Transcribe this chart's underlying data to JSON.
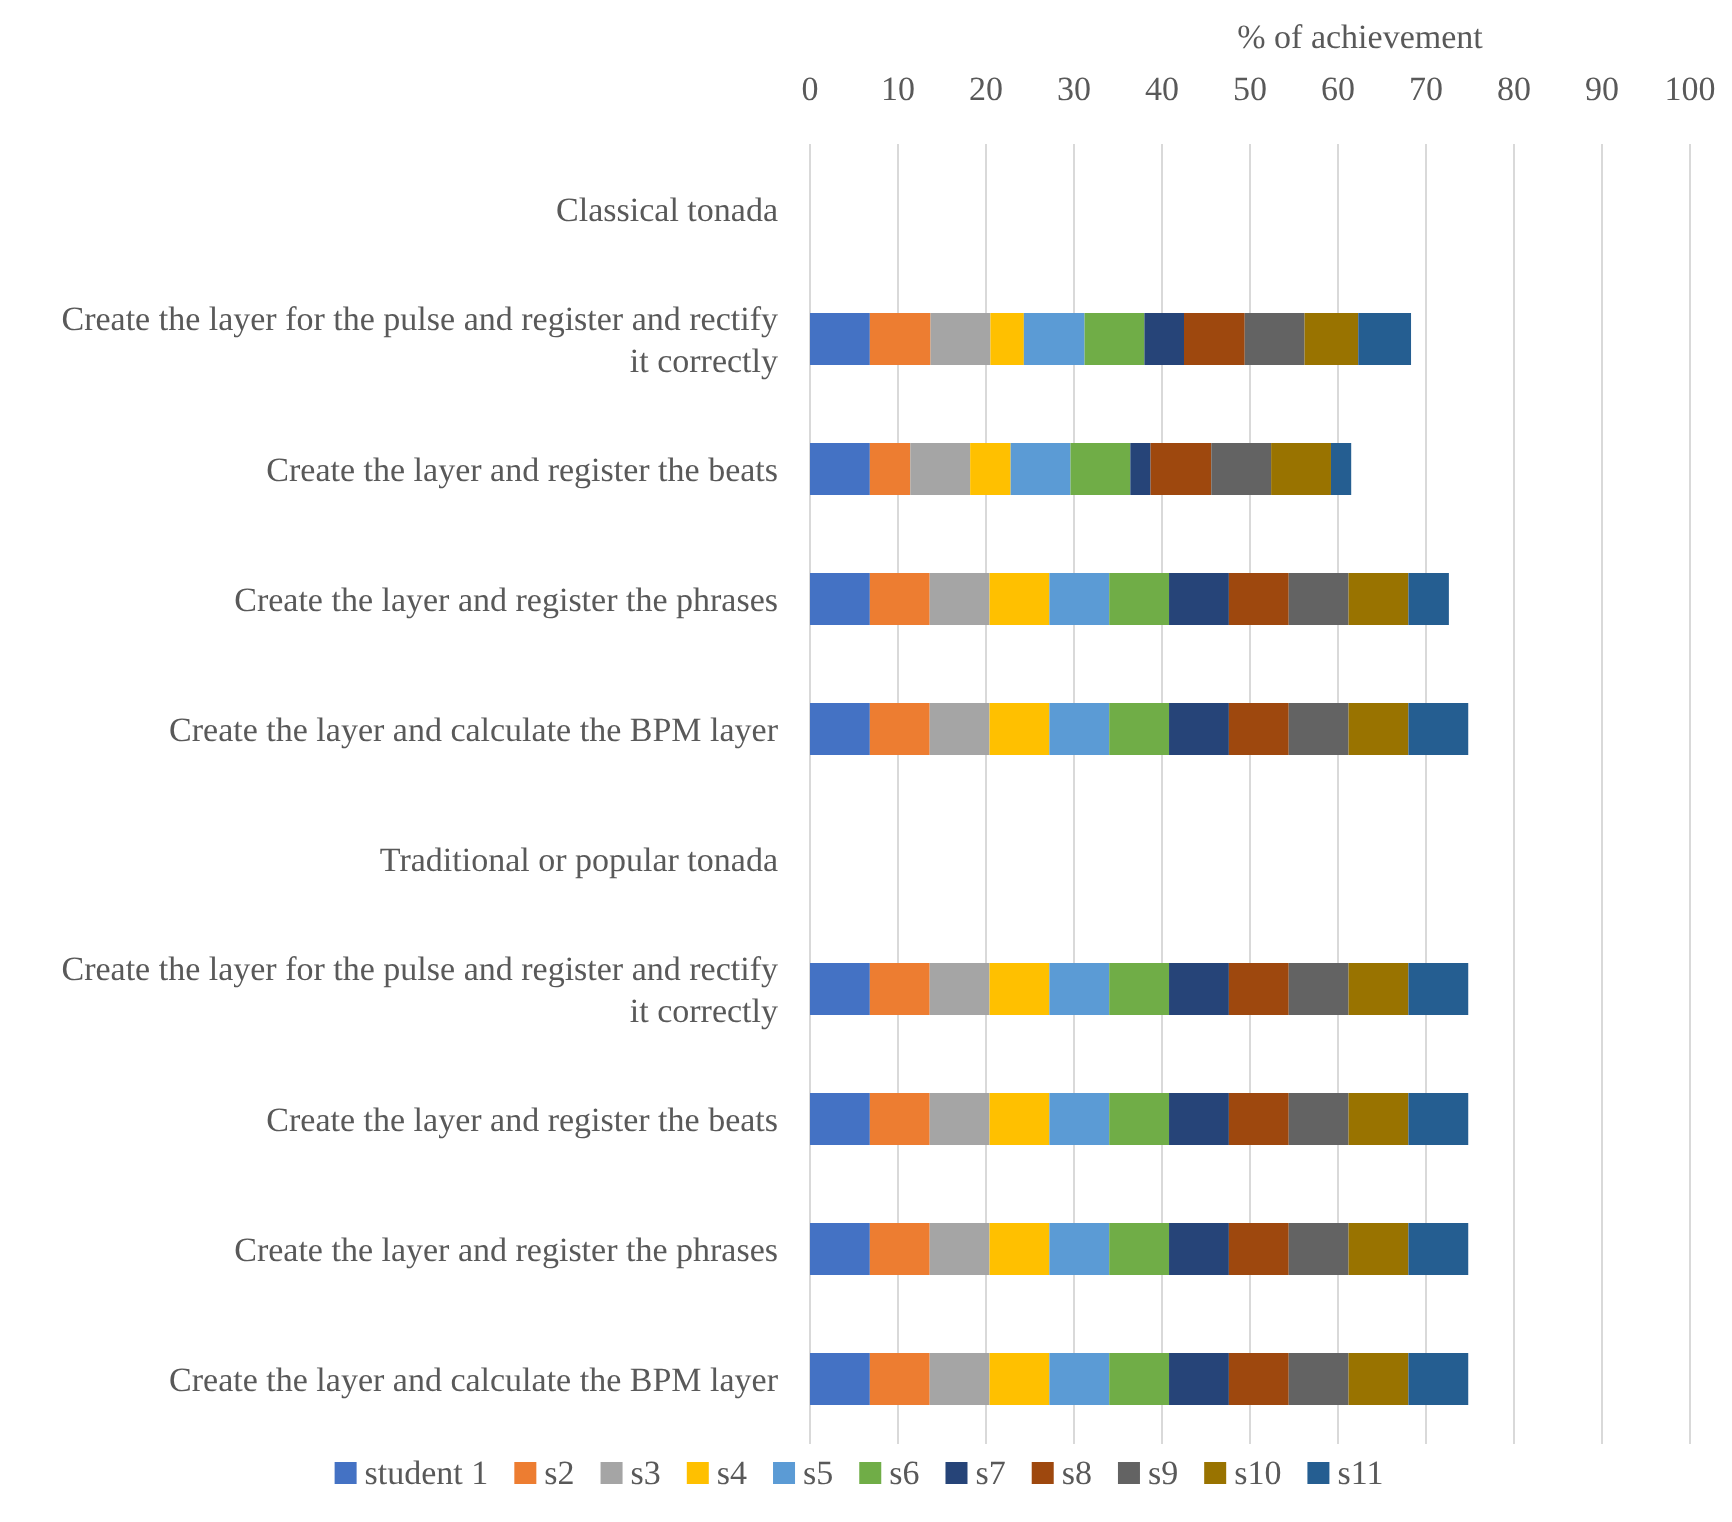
{
  "chart_data": {
    "type": "bar",
    "orientation": "horizontal",
    "stacked": true,
    "xlabel": "% of achievement",
    "categories": [
      "Classical tonada",
      "Create the layer for the pulse and register and rectify it correctly",
      "Create the layer and register the beats",
      "Create the layer and register the phrases",
      "Create the layer and calculate the BPM layer",
      "Traditional or popular tonada",
      "Create the layer for the pulse and register and rectify it correctly",
      "Create the layer and register the beats",
      "Create the layer and register the phrases",
      "Create the layer and calculate the BPM layer"
    ],
    "series": [
      {
        "name": "student 1",
        "color": "#4472c4",
        "values": [
          null,
          6.8,
          6.8,
          6.8,
          6.8,
          null,
          6.8,
          6.8,
          6.8,
          6.8
        ]
      },
      {
        "name": "s2",
        "color": "#ed7d31",
        "values": [
          null,
          6.9,
          4.6,
          6.8,
          6.8,
          null,
          6.8,
          6.8,
          6.8,
          6.8
        ]
      },
      {
        "name": "s3",
        "color": "#a5a5a5",
        "values": [
          null,
          6.8,
          6.8,
          6.8,
          6.8,
          null,
          6.8,
          6.8,
          6.8,
          6.8
        ]
      },
      {
        "name": "s4",
        "color": "#ffc000",
        "values": [
          null,
          3.8,
          4.6,
          6.8,
          6.8,
          null,
          6.8,
          6.8,
          6.8,
          6.8
        ]
      },
      {
        "name": "s5",
        "color": "#5b9bd5",
        "values": [
          null,
          6.9,
          6.8,
          6.8,
          6.8,
          null,
          6.8,
          6.8,
          6.8,
          6.8
        ]
      },
      {
        "name": "s6",
        "color": "#70ad47",
        "values": [
          null,
          6.8,
          6.8,
          6.8,
          6.8,
          null,
          6.8,
          6.8,
          6.8,
          6.8
        ]
      },
      {
        "name": "s7",
        "color": "#264478",
        "values": [
          null,
          4.5,
          2.3,
          6.8,
          6.8,
          null,
          6.8,
          6.8,
          6.8,
          6.8
        ]
      },
      {
        "name": "s8",
        "color": "#9e480e",
        "values": [
          null,
          6.9,
          6.9,
          6.8,
          6.8,
          null,
          6.8,
          6.8,
          6.8,
          6.8
        ]
      },
      {
        "name": "s9",
        "color": "#636363",
        "values": [
          null,
          6.8,
          6.8,
          6.8,
          6.8,
          null,
          6.8,
          6.8,
          6.8,
          6.8
        ]
      },
      {
        "name": "s10",
        "color": "#997300",
        "values": [
          null,
          6.1,
          6.8,
          6.8,
          6.8,
          null,
          6.8,
          6.8,
          6.8,
          6.8
        ]
      },
      {
        "name": "s11",
        "color": "#255e91",
        "values": [
          null,
          6.0,
          2.3,
          4.6,
          6.8,
          null,
          6.8,
          6.8,
          6.8,
          6.8
        ]
      }
    ],
    "xlim": [
      0,
      100
    ],
    "xticks": [
      0,
      10,
      20,
      30,
      40,
      50,
      60,
      70,
      80,
      90,
      100
    ],
    "grid": "x",
    "legend": "bottom"
  }
}
